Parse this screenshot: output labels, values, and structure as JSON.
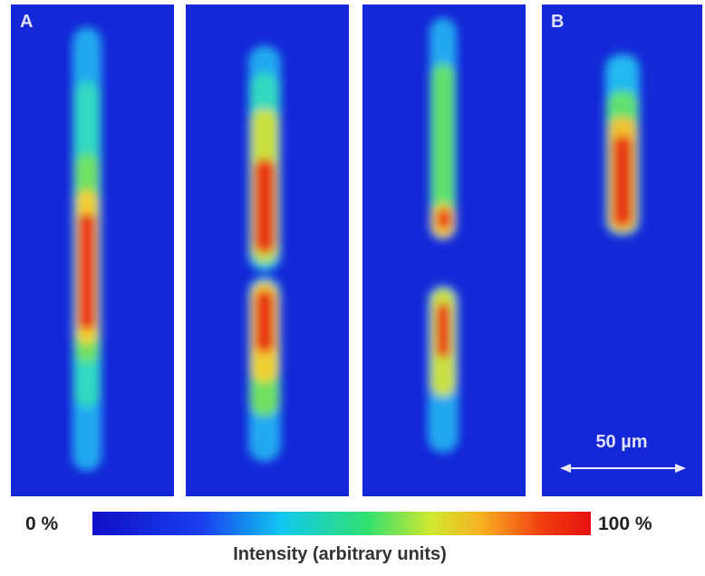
{
  "panels": [
    {
      "label": "A"
    },
    {
      "label": "B"
    }
  ],
  "scale_bar": {
    "label": "50 µm"
  },
  "colorbar": {
    "min_label": "0 %",
    "max_label": "100 %",
    "title": "Intensity (arbitrary units)"
  }
}
